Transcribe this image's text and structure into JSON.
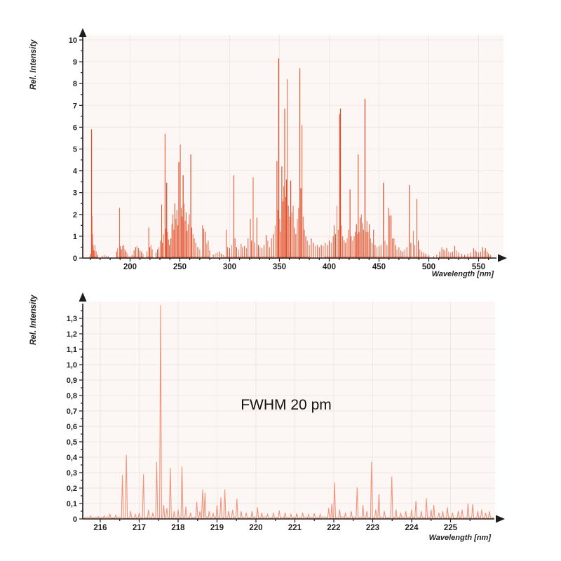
{
  "page": {
    "background": "#ffffff"
  },
  "colors": {
    "plot_bg": "#fcf7f5",
    "grid": "#f1e5e2",
    "axis": "#1c1c1c",
    "text": "#222222",
    "annotation": "#111111",
    "palette_top": [
      "#e25532",
      "#d8431f",
      "#ec7a55",
      "#e8603c"
    ],
    "line_bottom": "#f0947a"
  },
  "chart_data": [
    {
      "id": "overview-spectrum",
      "type": "line",
      "variant": "emission-line-spectrum",
      "render": "sticks",
      "title": "",
      "xlabel": "Wavelength [nm]",
      "ylabel": "Rel.  Intensity",
      "xlim": [
        152.5,
        575
      ],
      "ylim": [
        0,
        10
      ],
      "grid": true,
      "legend": "none",
      "x_ticks": [
        200,
        250,
        300,
        350,
        400,
        450,
        500,
        550
      ],
      "x_minor_step": 10,
      "y_ticks": [
        0,
        1,
        2,
        3,
        4,
        5,
        6,
        7,
        8,
        9,
        10
      ],
      "y_tick_labels": [
        "0",
        "1",
        "2",
        "3",
        "4",
        "5",
        "6",
        "7",
        "8",
        "9",
        "10"
      ],
      "y_minor_step": 0.5,
      "baseline_bands": [
        [
          159,
          168
        ],
        [
          186,
          214
        ],
        [
          216,
          223
        ],
        [
          226,
          280
        ],
        [
          294,
          346
        ],
        [
          347,
          381
        ],
        [
          395,
          501
        ],
        [
          510,
          563
        ]
      ],
      "peaks": [
        [
          160.5,
          0.2
        ],
        [
          161.3,
          5.9
        ],
        [
          161.9,
          1.95
        ],
        [
          162.4,
          1.1
        ],
        [
          163,
          0.6
        ],
        [
          163.8,
          0.35
        ],
        [
          164.8,
          0.6
        ],
        [
          166,
          0.3
        ],
        [
          167.5,
          0.15
        ],
        [
          172,
          0.1
        ],
        [
          174,
          0.15
        ],
        [
          176,
          0.1
        ],
        [
          178,
          0.08
        ],
        [
          186.5,
          0.3
        ],
        [
          187.5,
          0.45
        ],
        [
          189.4,
          2.3
        ],
        [
          190.3,
          0.55
        ],
        [
          191.2,
          0.4
        ],
        [
          192.4,
          0.55
        ],
        [
          193.6,
          0.6
        ],
        [
          194.8,
          0.4
        ],
        [
          196,
          0.3
        ],
        [
          197.5,
          0.2
        ],
        [
          202,
          0.15
        ],
        [
          204,
          0.35
        ],
        [
          205.5,
          0.5
        ],
        [
          207,
          0.55
        ],
        [
          208.5,
          0.45
        ],
        [
          210,
          0.35
        ],
        [
          211.5,
          0.3
        ],
        [
          213,
          0.2
        ],
        [
          217,
          0.3
        ],
        [
          218.8,
          1.4
        ],
        [
          219.8,
          0.5
        ],
        [
          221,
          0.6
        ],
        [
          222.2,
          0.4
        ],
        [
          226,
          0.25
        ],
        [
          227.5,
          0.4
        ],
        [
          229,
          0.5
        ],
        [
          230.5,
          0.8
        ],
        [
          231.7,
          2.45
        ],
        [
          232.6,
          0.7
        ],
        [
          233.6,
          1.1
        ],
        [
          235.2,
          5.7
        ],
        [
          236,
          1.35
        ],
        [
          236.8,
          3.45
        ],
        [
          237.7,
          1.2
        ],
        [
          238.6,
          0.85
        ],
        [
          239.5,
          0.6
        ],
        [
          241,
          0.9
        ],
        [
          242,
          1.55
        ],
        [
          243,
          2
        ],
        [
          244,
          1.3
        ],
        [
          245,
          2.5
        ],
        [
          246,
          1.8
        ],
        [
          247,
          2.2
        ],
        [
          248,
          1.5
        ],
        [
          249,
          4.4
        ],
        [
          250.5,
          5.2
        ],
        [
          251.4,
          2.3
        ],
        [
          252.3,
          1.9
        ],
        [
          253.3,
          3.8
        ],
        [
          254.3,
          2.5
        ],
        [
          255.3,
          1.7
        ],
        [
          256.3,
          2.1
        ],
        [
          257.3,
          1.25
        ],
        [
          258.4,
          1.55
        ],
        [
          259.5,
          2
        ],
        [
          261,
          4.75
        ],
        [
          262,
          1.4
        ],
        [
          263.2,
          1.1
        ],
        [
          264.5,
          0.9
        ],
        [
          266,
          0.7
        ],
        [
          268,
          0.5
        ],
        [
          270,
          0.4
        ],
        [
          272.7,
          1.5
        ],
        [
          274,
          1.35
        ],
        [
          275.5,
          1.2
        ],
        [
          277,
          0.65
        ],
        [
          278.5,
          0.8
        ],
        [
          280,
          0.35
        ],
        [
          283.5,
          0.15
        ],
        [
          285.5,
          0.2
        ],
        [
          287.5,
          0.25
        ],
        [
          289.5,
          0.3
        ],
        [
          291.5,
          0.2
        ],
        [
          293.5,
          0.15
        ],
        [
          296.5,
          1.3
        ],
        [
          298,
          0.5
        ],
        [
          300,
          0.45
        ],
        [
          302,
          0.6
        ],
        [
          304.2,
          3.8
        ],
        [
          305.4,
          0.9
        ],
        [
          307,
          0.5
        ],
        [
          309,
          0.4
        ],
        [
          311.5,
          0.65
        ],
        [
          313,
          0.5
        ],
        [
          315,
          0.55
        ],
        [
          317,
          0.45
        ],
        [
          318.5,
          0.9
        ],
        [
          320.8,
          1.8
        ],
        [
          322,
          0.8
        ],
        [
          323.6,
          3.7
        ],
        [
          325,
          0.7
        ],
        [
          327.3,
          1.85
        ],
        [
          328.8,
          0.6
        ],
        [
          330.5,
          0.5
        ],
        [
          332.5,
          0.45
        ],
        [
          334.5,
          0.6
        ],
        [
          336.8,
          1.05
        ],
        [
          338.3,
          0.8
        ],
        [
          340,
          0.5
        ],
        [
          342,
          0.9
        ],
        [
          344,
          1.1
        ],
        [
          345.7,
          1.5
        ],
        [
          347.5,
          4.45
        ],
        [
          348.5,
          2.2
        ],
        [
          349.3,
          9.15
        ],
        [
          350.3,
          1.8
        ],
        [
          351.3,
          1.2
        ],
        [
          352.4,
          4.2
        ],
        [
          353.5,
          2.6
        ],
        [
          354.4,
          3.3
        ],
        [
          355.3,
          6.85
        ],
        [
          356.3,
          2.8
        ],
        [
          357.1,
          3.6
        ],
        [
          358,
          8.2
        ],
        [
          359,
          2.4
        ],
        [
          360.2,
          1.9
        ],
        [
          361.3,
          3.55
        ],
        [
          362.5,
          2.1
        ],
        [
          363.8,
          2.4
        ],
        [
          365,
          1.4
        ],
        [
          366.5,
          1.1
        ],
        [
          368,
          1.8
        ],
        [
          369.3,
          2.3
        ],
        [
          370.5,
          8.7
        ],
        [
          371.6,
          3.2
        ],
        [
          372.6,
          6.1
        ],
        [
          373.8,
          1.9
        ],
        [
          375,
          1.3
        ],
        [
          376.5,
          1
        ],
        [
          378,
          0.8
        ],
        [
          380,
          0.6
        ],
        [
          382,
          0.9
        ],
        [
          384,
          0.7
        ],
        [
          386,
          0.55
        ],
        [
          388,
          0.6
        ],
        [
          390,
          0.5
        ],
        [
          392,
          0.6
        ],
        [
          394,
          0.55
        ],
        [
          396,
          0.7
        ],
        [
          398,
          0.6
        ],
        [
          400,
          0.8
        ],
        [
          402,
          0.7
        ],
        [
          404,
          1
        ],
        [
          404.9,
          1.5
        ],
        [
          406.3,
          1.1
        ],
        [
          407.7,
          2.4
        ],
        [
          409,
          1.3
        ],
        [
          410.5,
          6.6
        ],
        [
          411.3,
          6.85
        ],
        [
          412.3,
          1.5
        ],
        [
          413.5,
          1
        ],
        [
          415,
          0.8
        ],
        [
          416.5,
          0.7
        ],
        [
          418,
          0.9
        ],
        [
          419.4,
          1.3
        ],
        [
          420.9,
          3.15
        ],
        [
          422,
          1
        ],
        [
          423.5,
          0.8
        ],
        [
          425,
          1
        ],
        [
          426.3,
          1.2
        ],
        [
          427.3,
          1.55
        ],
        [
          428.3,
          1.1
        ],
        [
          429.1,
          4.75
        ],
        [
          430,
          1.2
        ],
        [
          431.2,
          1.85
        ],
        [
          432.3,
          2
        ],
        [
          433.4,
          1.6
        ],
        [
          434.4,
          1.3
        ],
        [
          435.9,
          7.3
        ],
        [
          437,
          1.2
        ],
        [
          437.9,
          1.7
        ],
        [
          439,
          1.2
        ],
        [
          440.3,
          1.55
        ],
        [
          441.5,
          0.9
        ],
        [
          443,
          0.7
        ],
        [
          444.5,
          1.3
        ],
        [
          446,
          0.6
        ],
        [
          448,
          0.5
        ],
        [
          450,
          0.55
        ],
        [
          452,
          0.6
        ],
        [
          454.5,
          3.45
        ],
        [
          456,
          0.8
        ],
        [
          458,
          0.6
        ],
        [
          459.8,
          2.3
        ],
        [
          460.9,
          1.95
        ],
        [
          462.3,
          1.95
        ],
        [
          463.5,
          0.9
        ],
        [
          465,
          0.9
        ],
        [
          466.5,
          0.6
        ],
        [
          468,
          0.4
        ],
        [
          470,
          0.5
        ],
        [
          472,
          0.35
        ],
        [
          474,
          0.3
        ],
        [
          476,
          0.4
        ],
        [
          478,
          0.5
        ],
        [
          480.5,
          3.35
        ],
        [
          482,
          0.7
        ],
        [
          484.5,
          1.25
        ],
        [
          486,
          0.6
        ],
        [
          488,
          2.7
        ],
        [
          489.5,
          0.8
        ],
        [
          491,
          0.4
        ],
        [
          493,
          0.3
        ],
        [
          495,
          0.25
        ],
        [
          497,
          0.2
        ],
        [
          500,
          0.15
        ],
        [
          505,
          0.1
        ],
        [
          508,
          0.15
        ],
        [
          511,
          0.3
        ],
        [
          513,
          0.5
        ],
        [
          514.5,
          0.4
        ],
        [
          516,
          0.35
        ],
        [
          518,
          0.45
        ],
        [
          520,
          0.3
        ],
        [
          522,
          0.25
        ],
        [
          524,
          0.3
        ],
        [
          526,
          0.55
        ],
        [
          528,
          0.35
        ],
        [
          530,
          0.25
        ],
        [
          533,
          0.2
        ],
        [
          536,
          0.15
        ],
        [
          539,
          0.2
        ],
        [
          542,
          0.25
        ],
        [
          545,
          0.45
        ],
        [
          546.5,
          0.35
        ],
        [
          548,
          0.3
        ],
        [
          550,
          0.25
        ],
        [
          552,
          0.3
        ],
        [
          554,
          0.5
        ],
        [
          555.5,
          0.35
        ],
        [
          557,
          0.45
        ],
        [
          558.5,
          0.3
        ],
        [
          560,
          0.2
        ],
        [
          562,
          0.15
        ]
      ]
    },
    {
      "id": "detail-spectrum",
      "type": "line",
      "variant": "high-resolution-spectrum",
      "render": "trace",
      "title": "",
      "xlabel": "Wavelength [nm]",
      "ylabel": "Rel.  Intensity",
      "annotation": "FWHM 20 pm",
      "xlim": [
        215.55,
        226.15
      ],
      "ylim": [
        0,
        1.4
      ],
      "grid": true,
      "legend": "none",
      "x_ticks": [
        216,
        217,
        218,
        219,
        220,
        221,
        222,
        223,
        224,
        225
      ],
      "x_minor_step": 0.5,
      "y_ticks": [
        0,
        0.1,
        0.2,
        0.3,
        0.4,
        0.5,
        0.6,
        0.7,
        0.8,
        0.9,
        1.0,
        1.1,
        1.2,
        1.3
      ],
      "y_tick_labels": [
        "0",
        "0,1",
        "0,2",
        "0,3",
        "0,4",
        "0,5",
        "0,6",
        "0,7",
        "0,8",
        "0,9",
        "1,0",
        "1,1",
        "1,2",
        "1,3"
      ],
      "y_minor_step": 0.05,
      "peaks": [
        [
          215.75,
          0.02
        ],
        [
          215.95,
          0.015
        ],
        [
          216.1,
          0.02
        ],
        [
          216.25,
          0.03
        ],
        [
          216.4,
          0.025
        ],
        [
          216.57,
          0.285
        ],
        [
          216.67,
          0.415
        ],
        [
          216.78,
          0.05
        ],
        [
          216.9,
          0.03
        ],
        [
          217,
          0.04
        ],
        [
          217.11,
          0.29
        ],
        [
          217.24,
          0.06
        ],
        [
          217.35,
          0.04
        ],
        [
          217.45,
          0.37
        ],
        [
          217.55,
          1.385
        ],
        [
          217.63,
          0.09
        ],
        [
          217.71,
          0.07
        ],
        [
          217.8,
          0.33
        ],
        [
          217.9,
          0.05
        ],
        [
          218,
          0.06
        ],
        [
          218.1,
          0.34
        ],
        [
          218.2,
          0.08
        ],
        [
          218.32,
          0.04
        ],
        [
          218.48,
          0.11
        ],
        [
          218.56,
          0.05
        ],
        [
          218.63,
          0.19
        ],
        [
          218.69,
          0.17
        ],
        [
          218.8,
          0.05
        ],
        [
          218.9,
          0.04
        ],
        [
          219,
          0.09
        ],
        [
          219.1,
          0.14
        ],
        [
          219.2,
          0.19
        ],
        [
          219.3,
          0.05
        ],
        [
          219.4,
          0.06
        ],
        [
          219.51,
          0.13
        ],
        [
          219.62,
          0.05
        ],
        [
          219.75,
          0.04
        ],
        [
          219.9,
          0.05
        ],
        [
          220.04,
          0.075
        ],
        [
          220.15,
          0.04
        ],
        [
          220.3,
          0.03
        ],
        [
          220.45,
          0.04
        ],
        [
          220.6,
          0.055
        ],
        [
          220.75,
          0.04
        ],
        [
          220.9,
          0.03
        ],
        [
          221.05,
          0.035
        ],
        [
          221.2,
          0.04
        ],
        [
          221.35,
          0.03
        ],
        [
          221.5,
          0.035
        ],
        [
          221.65,
          0.03
        ],
        [
          221.87,
          0.07
        ],
        [
          221.95,
          0.1
        ],
        [
          222.02,
          0.235
        ],
        [
          222.15,
          0.06
        ],
        [
          222.3,
          0.04
        ],
        [
          222.45,
          0.05
        ],
        [
          222.6,
          0.205
        ],
        [
          222.75,
          0.09
        ],
        [
          222.85,
          0.05
        ],
        [
          222.97,
          0.37
        ],
        [
          223.08,
          0.06
        ],
        [
          223.16,
          0.16
        ],
        [
          223.3,
          0.05
        ],
        [
          223.49,
          0.275
        ],
        [
          223.6,
          0.06
        ],
        [
          223.72,
          0.04
        ],
        [
          223.85,
          0.05
        ],
        [
          224,
          0.06
        ],
        [
          224.11,
          0.115
        ],
        [
          224.25,
          0.05
        ],
        [
          224.38,
          0.135
        ],
        [
          224.5,
          0.06
        ],
        [
          224.57,
          0.09
        ],
        [
          224.7,
          0.04
        ],
        [
          224.8,
          0.05
        ],
        [
          224.92,
          0.075
        ],
        [
          225.05,
          0.04
        ],
        [
          225.2,
          0.05
        ],
        [
          225.3,
          0.06
        ],
        [
          225.45,
          0.1
        ],
        [
          225.57,
          0.095
        ],
        [
          225.7,
          0.05
        ],
        [
          225.8,
          0.06
        ],
        [
          225.9,
          0.04
        ],
        [
          226,
          0.05
        ]
      ]
    }
  ]
}
